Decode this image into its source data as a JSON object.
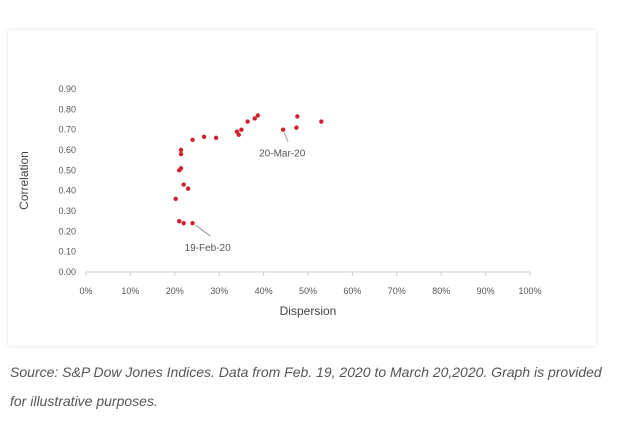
{
  "chart_data": {
    "type": "scatter",
    "xlabel": "Dispersion",
    "ylabel": "Correlation",
    "xlim": [
      0,
      100
    ],
    "ylim": [
      0,
      0.9
    ],
    "xticks": [
      "0%",
      "10%",
      "20%",
      "30%",
      "40%",
      "50%",
      "60%",
      "70%",
      "80%",
      "90%",
      "100%"
    ],
    "yticks": [
      "0.00",
      "0.10",
      "0.20",
      "0.30",
      "0.40",
      "0.50",
      "0.60",
      "0.70",
      "0.80",
      "0.90"
    ],
    "grid": false,
    "color": "#d0202e",
    "points": [
      [
        20.2,
        0.36
      ],
      [
        21,
        0.25
      ],
      [
        22,
        0.24
      ],
      [
        24,
        0.24
      ],
      [
        22,
        0.43
      ],
      [
        23,
        0.41
      ],
      [
        21,
        0.5
      ],
      [
        21.4,
        0.51
      ],
      [
        21.4,
        0.58
      ],
      [
        21.4,
        0.6
      ],
      [
        24,
        0.65
      ],
      [
        26.6,
        0.665
      ],
      [
        29.3,
        0.66
      ],
      [
        34,
        0.69
      ],
      [
        34.4,
        0.675
      ],
      [
        35,
        0.7
      ],
      [
        36.4,
        0.74
      ],
      [
        38,
        0.755
      ],
      [
        38.7,
        0.77
      ],
      [
        44.4,
        0.7
      ],
      [
        47.4,
        0.71
      ],
      [
        47.6,
        0.765
      ],
      [
        53,
        0.74
      ]
    ],
    "annotations": [
      {
        "text": "19-Feb-20",
        "x": 24,
        "y": 0.24
      },
      {
        "text": "20-Mar-20",
        "x": 44.4,
        "y": 0.7
      }
    ]
  },
  "caption": "Source: S&P Dow Jones Indices. Data from Feb. 19, 2020 to March 20,2020. Graph is provided for illustrative purposes."
}
